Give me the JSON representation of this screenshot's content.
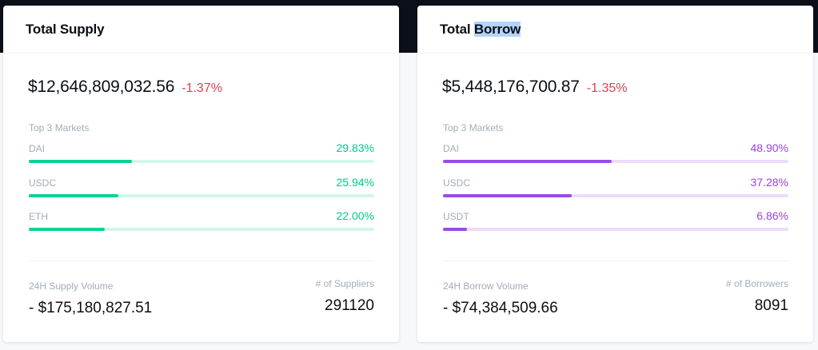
{
  "colors": {
    "top_band": "#0b0f17",
    "negative_change": "#e0404f",
    "supply_accent": "#00d395",
    "borrow_accent": "#9c4ae5"
  },
  "supply": {
    "title": "Total Supply",
    "total_value": "$12,646,809,032.56",
    "change": "-1.37%",
    "markets_heading": "Top 3 Markets",
    "markets": [
      {
        "name": "DAI",
        "percent": "29.83%",
        "share": 0.2983
      },
      {
        "name": "USDC",
        "percent": "25.94%",
        "share": 0.2594
      },
      {
        "name": "ETH",
        "percent": "22.00%",
        "share": 0.22
      }
    ],
    "volume_label": "24H Supply Volume",
    "volume_value": "- $175,180,827.51",
    "count_label": "# of Suppliers",
    "count_value": "291120"
  },
  "borrow": {
    "title_prefix": "Total ",
    "title_highlight": "Borrow",
    "total_value": "$5,448,176,700.87",
    "change": "-1.35%",
    "markets_heading": "Top 3 Markets",
    "markets": [
      {
        "name": "DAI",
        "percent": "48.90%",
        "share": 0.489
      },
      {
        "name": "USDC",
        "percent": "37.28%",
        "share": 0.3728
      },
      {
        "name": "USDT",
        "percent": "6.86%",
        "share": 0.0686
      }
    ],
    "volume_label": "24H Borrow Volume",
    "volume_value": "- $74,384,509.66",
    "count_label": "# of Borrowers",
    "count_value": "8091"
  }
}
